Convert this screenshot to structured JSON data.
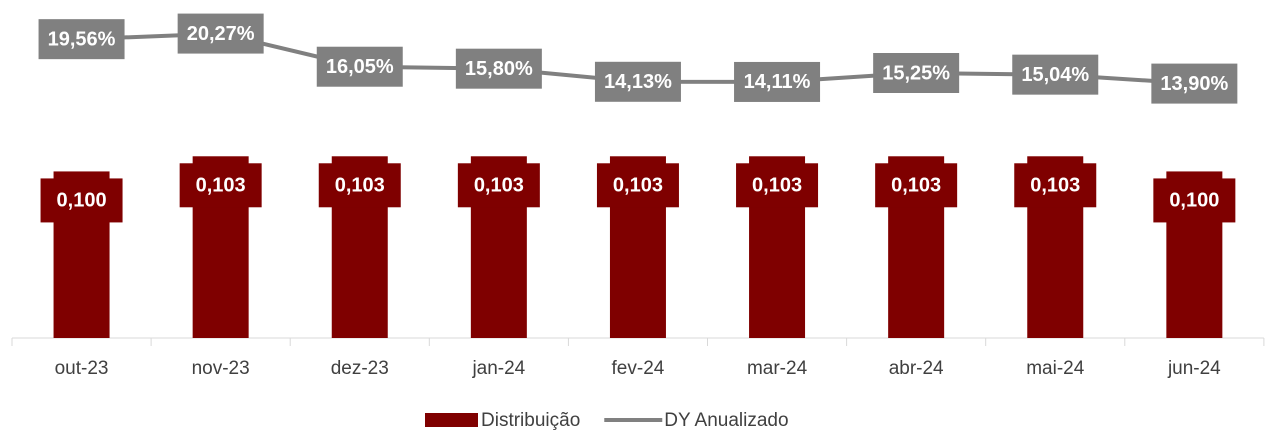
{
  "chart_data": {
    "type": "combo",
    "categories": [
      "out-23",
      "nov-23",
      "dez-23",
      "jan-24",
      "fev-24",
      "mar-24",
      "abr-24",
      "mai-24",
      "jun-24"
    ],
    "series": [
      {
        "name": "Distribuição",
        "type": "bar",
        "color": "#7f0000",
        "values": [
          0.1,
          0.103,
          0.103,
          0.103,
          0.103,
          0.103,
          0.103,
          0.103,
          0.1
        ],
        "value_labels": [
          "0,100",
          "0,103",
          "0,103",
          "0,103",
          "0,103",
          "0,103",
          "0,103",
          "0,103",
          "0,100"
        ]
      },
      {
        "name": "DY Anualizado",
        "type": "line",
        "color": "#808080",
        "axis": "y2",
        "values": [
          19.56,
          20.27,
          16.05,
          15.8,
          14.13,
          14.11,
          15.25,
          15.04,
          13.9
        ],
        "value_labels": [
          "19,56%",
          "20,27%",
          "16,05%",
          "15,80%",
          "14,13%",
          "14,11%",
          "15,25%",
          "15,04%",
          "13,90%"
        ]
      }
    ],
    "ylim": [
      0.067,
      0.13
    ],
    "y2lim": [
      -18.5,
      22
    ],
    "legend": "bottom"
  }
}
